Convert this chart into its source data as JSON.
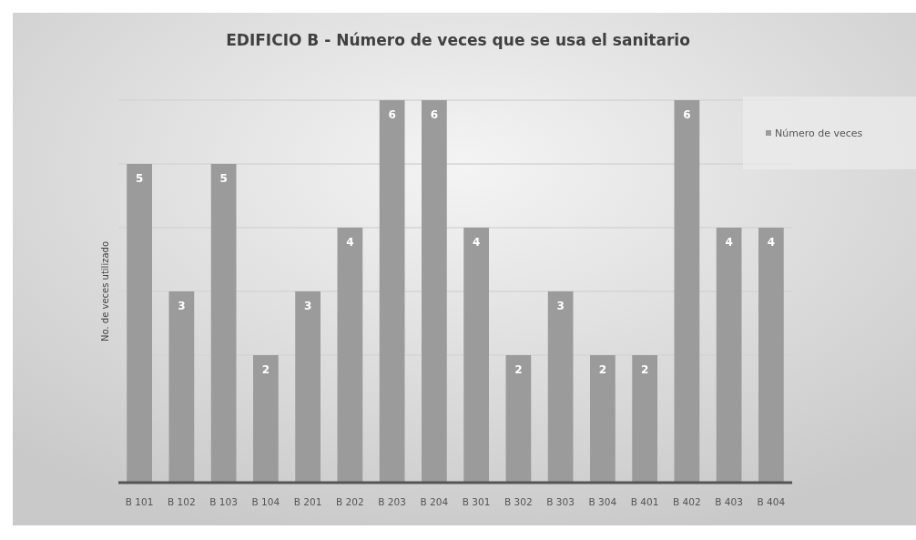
{
  "chart_data": {
    "type": "bar",
    "title": "EDIFICIO B - Número de veces que se usa el sanitario",
    "ylabel": "No. de veces utilizado",
    "categories": [
      "B 101",
      "B 102",
      "B 103",
      "B 104",
      "B 201",
      "B 202",
      "B 203",
      "B 204",
      "B 301",
      "B 302",
      "B 303",
      "B 304",
      "B 401",
      "B 402",
      "B 403",
      "B 404"
    ],
    "series": [
      {
        "name": "Número de veces",
        "color": "#9b9b9b",
        "values": [
          5,
          3,
          5,
          2,
          3,
          4,
          6,
          6,
          4,
          2,
          3,
          2,
          2,
          6,
          4,
          4
        ]
      }
    ],
    "ylim": [
      0,
      6
    ],
    "yticks": [
      {
        "value": 0,
        "label": null
      },
      {
        "value": 2,
        "label": null
      },
      {
        "value": 3,
        "label": null
      },
      {
        "value": 4,
        "label": null
      },
      {
        "value": 5,
        "label": null
      },
      {
        "value": 6,
        "label": null
      }
    ],
    "grid": "y",
    "legend": "top right",
    "data_labels": true,
    "tick_labels": "x"
  }
}
